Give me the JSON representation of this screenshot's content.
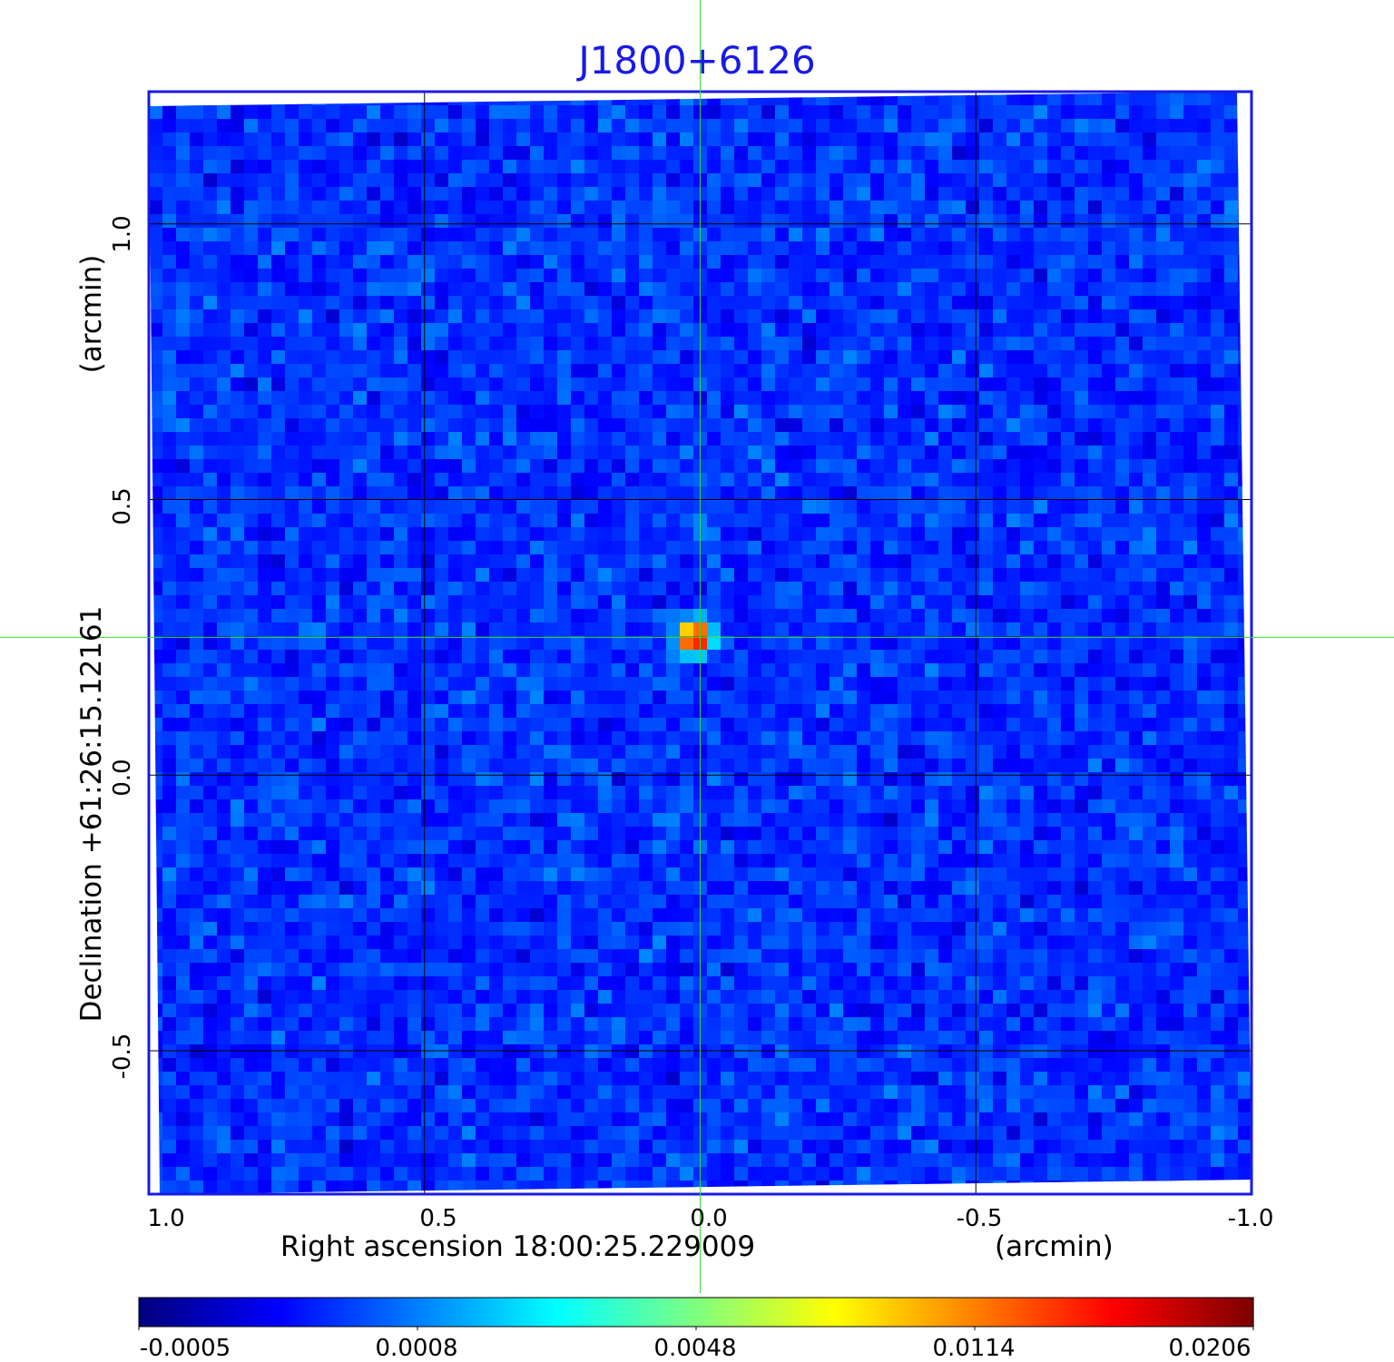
{
  "chart_data": {
    "type": "heatmap",
    "title": "J1800+6126",
    "xlabel": "Right ascension  18:00:25.229009",
    "xunit": "(arcmin)",
    "ylabel": "Declination  +61:26:15.12161",
    "yunit": "(arcmin)",
    "x_range": [
      1.0,
      -1.0
    ],
    "y_range": [
      -0.76,
      1.24
    ],
    "x_ticks": [
      "1.0",
      "0.5",
      "0.0",
      "-0.5",
      "-1.0"
    ],
    "x_tick_values": [
      1.0,
      0.5,
      0.0,
      -0.5,
      -1.0
    ],
    "y_ticks": [
      "-0.5",
      "0.0",
      "0.5",
      "1.0"
    ],
    "y_tick_values": [
      -0.5,
      0.0,
      0.5,
      1.0
    ],
    "grid": true,
    "crosshair": {
      "x": 0.0,
      "y": 0.25
    },
    "source": {
      "x": 0.01,
      "y": 0.25,
      "peak": 0.0206
    },
    "noise": {
      "min": -0.0005,
      "max": 0.0012
    },
    "colorbar": {
      "colormap": "jet",
      "tick_labels": [
        "-0.0005",
        "0.0008",
        "0.0048",
        "0.0114",
        "0.0206"
      ],
      "tick_values": [
        -0.0005,
        0.0008,
        0.0048,
        0.0114,
        0.0206
      ],
      "scale": "nonlinear"
    }
  },
  "colors": {
    "title": "#1a1ae6",
    "frame": "#1a1ae6",
    "grid": "#000000",
    "crosshair": "#33dd33"
  }
}
